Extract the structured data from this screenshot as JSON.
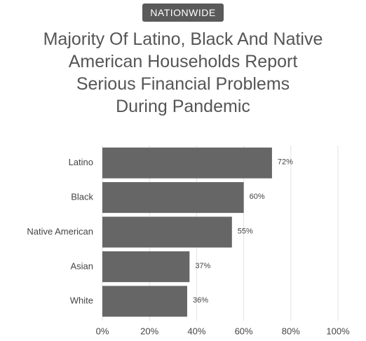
{
  "badge": "NATIONWIDE",
  "chart_data": {
    "type": "bar",
    "orientation": "horizontal",
    "title": [
      "Majority Of Latino, Black And Native",
      "American Households Report",
      "Serious Financial Problems",
      "During Pandemic"
    ],
    "categories": [
      "Latino",
      "Black",
      "Native American",
      "Asian",
      "White"
    ],
    "values": [
      72,
      60,
      55,
      37,
      36
    ],
    "value_labels": [
      "72%",
      "60%",
      "55%",
      "37%",
      "36%"
    ],
    "color": "#666666",
    "xlim": [
      0,
      100
    ],
    "xticks": [
      {
        "value": 0,
        "label": "0%"
      },
      {
        "value": 20,
        "label": "20%"
      },
      {
        "value": 40,
        "label": "40%"
      },
      {
        "value": 60,
        "label": "60%"
      },
      {
        "value": 80,
        "label": "80%"
      },
      {
        "value": 100,
        "label": "100%"
      }
    ],
    "grid": true
  }
}
